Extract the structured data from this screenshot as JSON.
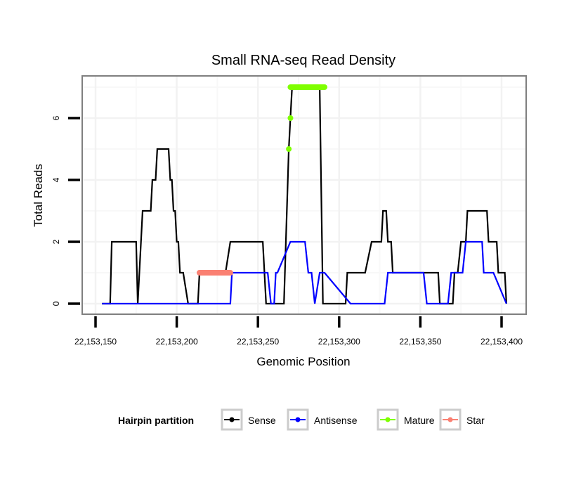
{
  "chart_data": {
    "type": "line",
    "title": "Small RNA-seq Read Density",
    "xlabel": "Genomic Position",
    "ylabel": "Total Reads",
    "xlim": [
      22153141,
      22153408
    ],
    "ylim": [
      -0.35,
      7.35
    ],
    "x_ticks": [
      22153150,
      22153200,
      22153250,
      22153300,
      22153350,
      22153400
    ],
    "x_tick_labels": [
      "22,153,150",
      "22,153,200",
      "22,153,250",
      "22,153,300",
      "22,153,350",
      "22,153,400"
    ],
    "y_ticks": [
      0,
      2,
      4,
      6
    ],
    "y_tick_labels": [
      "0",
      "2",
      "4",
      "6"
    ],
    "y_minor_gridlines": [
      1,
      3,
      5,
      7
    ],
    "x_minor_gridlines": [
      22153175,
      22153225,
      22153275,
      22153325,
      22153375
    ],
    "grid": true,
    "legend": {
      "title": "Hairpin partition",
      "position": "bottom",
      "entries": [
        {
          "name": "Sense",
          "color": "#000000"
        },
        {
          "name": "Antisense",
          "color": "#0000ff"
        },
        {
          "name": "Mature",
          "color": "#7fff00"
        },
        {
          "name": "Star",
          "color": "#fa8072"
        }
      ]
    },
    "series": [
      {
        "name": "Sense",
        "color": "#000000",
        "x": [
          22153154,
          22153159,
          22153160,
          22153175,
          22153176,
          22153179,
          22153181,
          22153184,
          22153185,
          22153187,
          22153188,
          22153195,
          22153196,
          22153197,
          22153198,
          22153199,
          22153200,
          22153201,
          22153202,
          22153204,
          22153207,
          22153213,
          22153214,
          22153214,
          22153230,
          22153233,
          22153234,
          22153253,
          22153255,
          22153266,
          22153269,
          22153270,
          22153271,
          22153288,
          22153290,
          22153304,
          22153305,
          22153314,
          22153316,
          22153320,
          22153322,
          22153326,
          22153327,
          22153329,
          22153330,
          22153332,
          22153333,
          22153335,
          22153337,
          22153361,
          22153362,
          22153370,
          22153371,
          22153373,
          22153375,
          22153378,
          22153379,
          22153391,
          22153392,
          22153397,
          22153398,
          22153402,
          22153403
        ],
        "y": [
          0,
          0,
          2,
          2,
          0,
          3,
          3,
          3,
          4,
          4,
          5,
          5,
          4,
          4,
          3,
          3,
          2,
          2,
          1,
          1,
          0,
          0,
          1,
          1,
          1,
          2,
          2,
          2,
          0,
          0,
          5,
          6,
          7,
          7,
          0,
          0,
          1,
          1,
          1,
          2,
          2,
          2,
          3,
          3,
          2,
          2,
          1,
          1,
          1,
          1,
          0,
          0,
          1,
          1,
          2,
          2,
          3,
          3,
          2,
          2,
          1,
          1,
          0
        ]
      },
      {
        "name": "Antisense",
        "color": "#0000ff",
        "x": [
          22153154,
          22153233,
          22153234,
          22153256,
          22153258,
          22153260,
          22153261,
          22153262,
          22153270,
          22153270,
          22153279,
          22153281,
          22153283,
          22153285,
          22153288,
          22153291,
          22153307,
          22153308,
          22153328,
          22153330,
          22153352,
          22153354,
          22153367,
          22153369,
          22153374,
          22153376,
          22153378,
          22153388,
          22153389,
          22153395,
          22153403
        ],
        "y": [
          0,
          0,
          1,
          1,
          0,
          0,
          1,
          1,
          2,
          2,
          2,
          1,
          1,
          0,
          1,
          1,
          0,
          0,
          0,
          1,
          1,
          0,
          0,
          1,
          1,
          1,
          2,
          2,
          1,
          1,
          0
        ]
      },
      {
        "name": "Mature",
        "color": "#7fff00",
        "segments": [
          {
            "x": [
              22153270,
              22153291
            ],
            "y": [
              7,
              7
            ]
          }
        ],
        "points": [
          {
            "x": 22153269,
            "y": 5
          },
          {
            "x": 22153270,
            "y": 6
          }
        ]
      },
      {
        "name": "Star",
        "color": "#fa8072",
        "segments": [
          {
            "x": [
              22153214,
              22153233
            ],
            "y": [
              1,
              1
            ]
          }
        ],
        "points": []
      }
    ]
  }
}
